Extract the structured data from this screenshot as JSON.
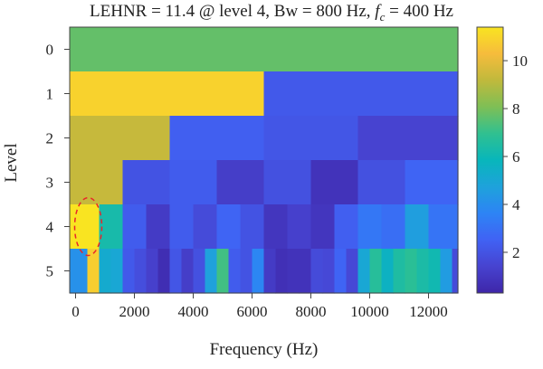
{
  "title": {
    "prefix": "LEHNR = 11.4 @ level 4, Bw = 800 Hz, ",
    "fc_symbol": "f",
    "fc_sub": "c",
    "suffix": " = 400 Hz"
  },
  "chart_data": {
    "type": "heatmap",
    "xlabel": "Frequency (Hz)",
    "ylabel": "Level",
    "xlim": [
      -200,
      13000
    ],
    "x_ticks": [
      0,
      2000,
      4000,
      6000,
      8000,
      10000,
      12000
    ],
    "x_tick_labels": [
      "0",
      "2000",
      "4000",
      "6000",
      "8000",
      "10000",
      "12000"
    ],
    "y_categories": [
      "0",
      "1",
      "2",
      "3",
      "4",
      "5"
    ],
    "colorbar": {
      "range": [
        0.3,
        11.4
      ],
      "ticks": [
        2,
        4,
        6,
        8,
        10
      ],
      "tick_labels": [
        "2",
        "4",
        "6",
        "8",
        "10"
      ],
      "colormap": [
        "#3e26a8",
        "#4743d0",
        "#4062f4",
        "#2d84f5",
        "#1ea2db",
        "#08b6bb",
        "#30c090",
        "#7ebf55",
        "#c0b93c",
        "#f6bc3c",
        "#f9e421"
      ]
    },
    "levels": [
      {
        "level": 0,
        "bands": [
          {
            "x0": -200,
            "x1": 13000,
            "v": 7.7
          }
        ]
      },
      {
        "level": 1,
        "bands": [
          {
            "x0": -200,
            "x1": 6400,
            "v": 10.9
          },
          {
            "x0": 6400,
            "x1": 13000,
            "v": 2.2
          }
        ]
      },
      {
        "level": 2,
        "bands": [
          {
            "x0": -200,
            "x1": 3200,
            "v": 9.3
          },
          {
            "x0": 3200,
            "x1": 6400,
            "v": 2.4
          },
          {
            "x0": 6400,
            "x1": 9600,
            "v": 2.1
          },
          {
            "x0": 9600,
            "x1": 13000,
            "v": 1.4
          }
        ]
      },
      {
        "level": 3,
        "bands": [
          {
            "x0": -200,
            "x1": 1600,
            "v": 9.3
          },
          {
            "x0": 1600,
            "x1": 3200,
            "v": 2.0
          },
          {
            "x0": 3200,
            "x1": 4800,
            "v": 2.3
          },
          {
            "x0": 4800,
            "x1": 6400,
            "v": 1.2
          },
          {
            "x0": 6400,
            "x1": 8000,
            "v": 1.9
          },
          {
            "x0": 8000,
            "x1": 9600,
            "v": 0.8
          },
          {
            "x0": 9600,
            "x1": 11200,
            "v": 1.9
          },
          {
            "x0": 11200,
            "x1": 13000,
            "v": 2.6
          }
        ]
      },
      {
        "level": 4,
        "bands": [
          {
            "x0": -200,
            "x1": 800,
            "v": 11.4
          },
          {
            "x0": 800,
            "x1": 1600,
            "v": 6.3
          },
          {
            "x0": 1600,
            "x1": 2400,
            "v": 2.3
          },
          {
            "x0": 2400,
            "x1": 3200,
            "v": 1.1
          },
          {
            "x0": 3200,
            "x1": 4000,
            "v": 2.3
          },
          {
            "x0": 4000,
            "x1": 4800,
            "v": 1.7
          },
          {
            "x0": 4800,
            "x1": 5600,
            "v": 2.6
          },
          {
            "x0": 5600,
            "x1": 6400,
            "v": 2.0
          },
          {
            "x0": 6400,
            "x1": 7200,
            "v": 0.9
          },
          {
            "x0": 7200,
            "x1": 8000,
            "v": 1.3
          },
          {
            "x0": 8000,
            "x1": 8800,
            "v": 0.9
          },
          {
            "x0": 8800,
            "x1": 9600,
            "v": 2.4
          },
          {
            "x0": 9600,
            "x1": 10400,
            "v": 3.2
          },
          {
            "x0": 10400,
            "x1": 11200,
            "v": 2.9
          },
          {
            "x0": 11200,
            "x1": 12000,
            "v": 4.6
          },
          {
            "x0": 12000,
            "x1": 13000,
            "v": 3.1
          }
        ]
      },
      {
        "level": 5,
        "bands": [
          {
            "x0": -200,
            "x1": 400,
            "v": 4.1
          },
          {
            "x0": 400,
            "x1": 800,
            "v": 10.8
          },
          {
            "x0": 800,
            "x1": 1200,
            "v": 5.2
          },
          {
            "x0": 1200,
            "x1": 1600,
            "v": 5.0
          },
          {
            "x0": 1600,
            "x1": 2000,
            "v": 2.2
          },
          {
            "x0": 2000,
            "x1": 2400,
            "v": 1.8
          },
          {
            "x0": 2400,
            "x1": 2800,
            "v": 1.3
          },
          {
            "x0": 2800,
            "x1": 3200,
            "v": 0.6
          },
          {
            "x0": 3200,
            "x1": 3600,
            "v": 2.1
          },
          {
            "x0": 3600,
            "x1": 4000,
            "v": 1.2
          },
          {
            "x0": 4000,
            "x1": 4400,
            "v": 1.9
          },
          {
            "x0": 4400,
            "x1": 4800,
            "v": 4.7
          },
          {
            "x0": 4800,
            "x1": 5200,
            "v": 7.2
          },
          {
            "x0": 5200,
            "x1": 5600,
            "v": 2.3
          },
          {
            "x0": 5600,
            "x1": 6000,
            "v": 2.0
          },
          {
            "x0": 6000,
            "x1": 6400,
            "v": 3.7
          },
          {
            "x0": 6400,
            "x1": 6800,
            "v": 1.1
          },
          {
            "x0": 6800,
            "x1": 7200,
            "v": 0.7
          },
          {
            "x0": 7200,
            "x1": 7600,
            "v": 0.8
          },
          {
            "x0": 7600,
            "x1": 8000,
            "v": 0.8
          },
          {
            "x0": 8000,
            "x1": 8400,
            "v": 1.7
          },
          {
            "x0": 8400,
            "x1": 8800,
            "v": 1.6
          },
          {
            "x0": 8800,
            "x1": 9200,
            "v": 2.6
          },
          {
            "x0": 9200,
            "x1": 9600,
            "v": 1.6
          },
          {
            "x0": 9600,
            "x1": 10000,
            "v": 5.0
          },
          {
            "x0": 10000,
            "x1": 10400,
            "v": 6.7
          },
          {
            "x0": 10400,
            "x1": 10800,
            "v": 5.6
          },
          {
            "x0": 10800,
            "x1": 11200,
            "v": 6.5
          },
          {
            "x0": 11200,
            "x1": 11600,
            "v": 6.8
          },
          {
            "x0": 11600,
            "x1": 12000,
            "v": 6.4
          },
          {
            "x0": 12000,
            "x1": 12400,
            "v": 6.1
          },
          {
            "x0": 12400,
            "x1": 12800,
            "v": 4.5
          },
          {
            "x0": 12800,
            "x1": 13000,
            "v": 1.7
          }
        ]
      }
    ],
    "annotation": {
      "shape": "dashed-ellipse",
      "color": "#e8262a",
      "level": 4,
      "x_center": 400
    }
  }
}
